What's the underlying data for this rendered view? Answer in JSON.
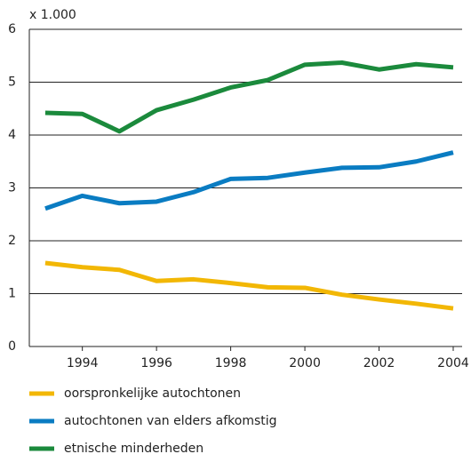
{
  "chart_data": {
    "type": "line",
    "y_unit_label": "x 1.000",
    "x": [
      1993,
      1994,
      1995,
      1996,
      1997,
      1998,
      1999,
      2000,
      2001,
      2002,
      2003,
      2004
    ],
    "series": [
      {
        "name": "oorspronkelijke autochtonen",
        "color": "#f2b705",
        "values": [
          1.58,
          1.5,
          1.45,
          1.24,
          1.27,
          1.2,
          1.12,
          1.11,
          0.98,
          0.89,
          0.81,
          0.72
        ]
      },
      {
        "name": "autochtonen van elders afkomstig",
        "color": "#0a7cc2",
        "values": [
          2.61,
          2.85,
          2.71,
          2.74,
          2.92,
          3.17,
          3.19,
          3.29,
          3.38,
          3.39,
          3.5,
          3.67
        ]
      },
      {
        "name": "etnische minderheden",
        "color": "#1b8a3c",
        "values": [
          4.42,
          4.4,
          4.07,
          4.47,
          4.67,
          4.9,
          5.04,
          5.33,
          5.37,
          5.24,
          5.34,
          5.28
        ]
      }
    ],
    "xlim": [
      1992.57,
      2004.24
    ],
    "xticks": [
      1994,
      1996,
      1998,
      2000,
      2002,
      2004
    ],
    "ylim": [
      0,
      6
    ],
    "yticks": [
      0,
      1,
      2,
      3,
      4,
      5,
      6
    ],
    "grid": true
  }
}
